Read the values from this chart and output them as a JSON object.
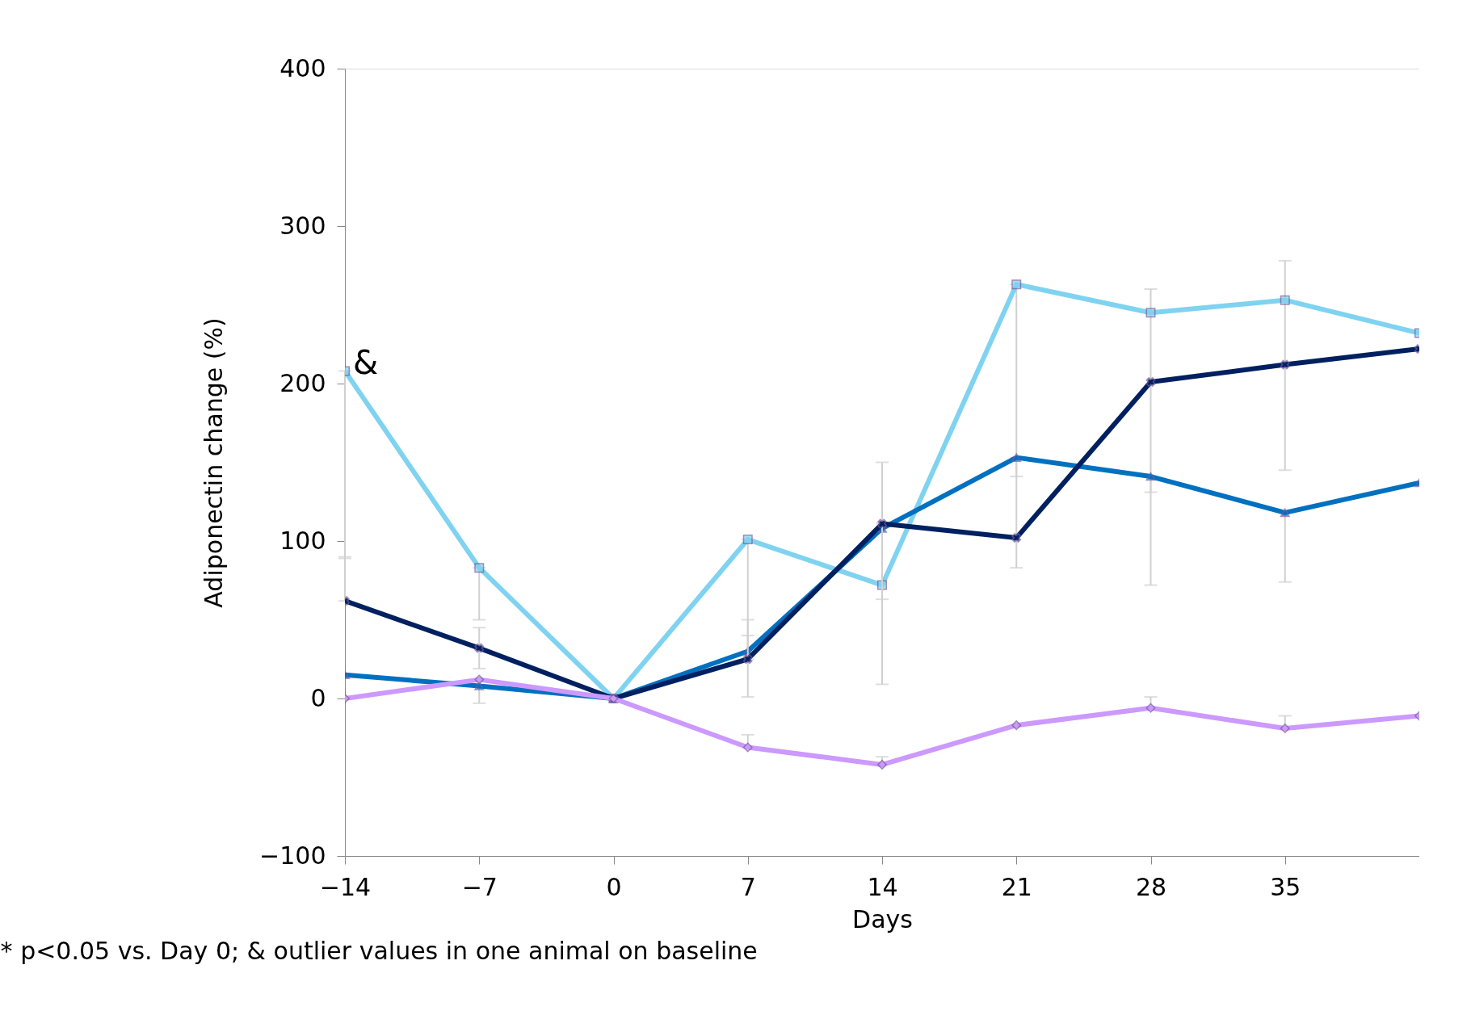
{
  "chart_data": {
    "type": "line",
    "xlabel": "Days",
    "ylabel": "Adiponectin change (%)",
    "x": [
      -14,
      -7,
      0,
      7,
      14,
      21,
      28,
      35,
      42
    ],
    "xlim": [
      -14,
      42
    ],
    "xticks": [
      -14,
      -7,
      0,
      7,
      14,
      21,
      28,
      35
    ],
    "ylim": [
      -100,
      400
    ],
    "yticks": [
      -100,
      0,
      100,
      200,
      300,
      400
    ],
    "grid": false,
    "line_style": "solid",
    "series": [
      {
        "color": "#7fd3f0",
        "marker": "square",
        "values": [
          208,
          83,
          0,
          101,
          72,
          263,
          245,
          253,
          232
        ],
        "errors": [
          [
            89,
            208
          ],
          [
            50,
            83
          ],
          null,
          [
            1,
            101
          ],
          [
            9,
            150
          ],
          [
            83,
            263
          ],
          [
            72,
            260
          ],
          [
            145,
            278
          ],
          null
        ]
      },
      {
        "color": "#0070c0",
        "marker": "triangle",
        "values": [
          15,
          8,
          0,
          30,
          108,
          153,
          141,
          118,
          137
        ],
        "errors": [
          null,
          [
            -3,
            8
          ],
          null,
          [
            30,
            40
          ],
          null,
          [
            141,
            153
          ],
          [
            131,
            141
          ],
          [
            74,
            118
          ],
          null
        ]
      },
      {
        "color": "#002060",
        "marker": "cross",
        "values": [
          62,
          32,
          0,
          25,
          111,
          102,
          201,
          212,
          222
        ],
        "errors": [
          [
            62,
            90
          ],
          [
            19,
            45
          ],
          null,
          [
            25,
            50
          ],
          [
            63,
            111
          ],
          null,
          null,
          null,
          null
        ]
      },
      {
        "color": "#cc99ff",
        "marker": "diamond",
        "values": [
          0,
          12,
          0,
          -31,
          -42,
          -17,
          -6,
          -19,
          -11
        ],
        "errors": [
          null,
          null,
          null,
          [
            -31,
            -23
          ],
          [
            -42,
            -37
          ],
          null,
          [
            -6,
            1
          ],
          [
            -19,
            -11
          ],
          null
        ]
      }
    ],
    "annotations": [
      {
        "text": "&",
        "x": -14,
        "y": 208
      },
      "* p<0.05  vs. Day 0;   & outlier values in one animal on baseline"
    ]
  }
}
